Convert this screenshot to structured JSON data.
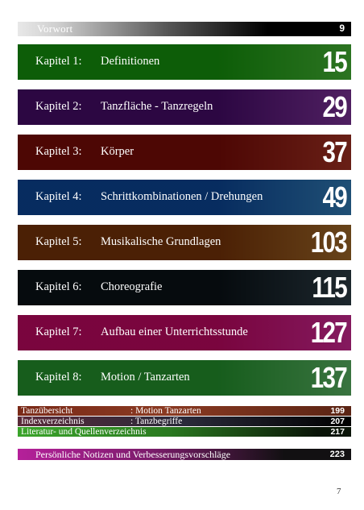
{
  "vorwort": {
    "label": "Vorwort",
    "page": "9"
  },
  "chapters": [
    {
      "kapitel": "Kapitel 1:",
      "title": "Definitionen",
      "page": "15",
      "color": "#3a9a2c"
    },
    {
      "kapitel": "Kapitel 2:",
      "title": "Tanzfläche - Tanzregeln",
      "page": "29",
      "color": "#6a2a82"
    },
    {
      "kapitel": "Kapitel 3:",
      "title": "Körper",
      "page": "37",
      "color": "#8c2a1e"
    },
    {
      "kapitel": "Kapitel 4:",
      "title": "Schrittkombinationen / Drehungen",
      "page": "49",
      "color": "#2a6a9c"
    },
    {
      "kapitel": "Kapitel 5:",
      "title": "Musikalische Grundlagen",
      "page": "103",
      "color": "#8a5a22"
    },
    {
      "kapitel": "Kapitel 6:",
      "title": "Choreografie",
      "page": "115",
      "color": "#26343c"
    },
    {
      "kapitel": "Kapitel 7:",
      "title": "Aufbau einer Unterrichtsstunde",
      "page": "127",
      "color": "#b0227e"
    },
    {
      "kapitel": "Kapitel 8:",
      "title": "Motion / Tanzarten",
      "page": "137",
      "color": "#4c9a55"
    }
  ],
  "index_rows": [
    {
      "left": "Tanzübersicht",
      "right": ": Motion Tanzarten",
      "page": "199"
    },
    {
      "left": "Indexverzeichnis",
      "right": ": Tanzbegriffe",
      "page": "207"
    },
    {
      "left": "Literatur- und Quellenverzeichnis",
      "right": "",
      "page": "217"
    }
  ],
  "notes": {
    "label": "Persönliche Notizen und Verbesserungsvorschläge",
    "page": "223"
  },
  "page_number": "7"
}
